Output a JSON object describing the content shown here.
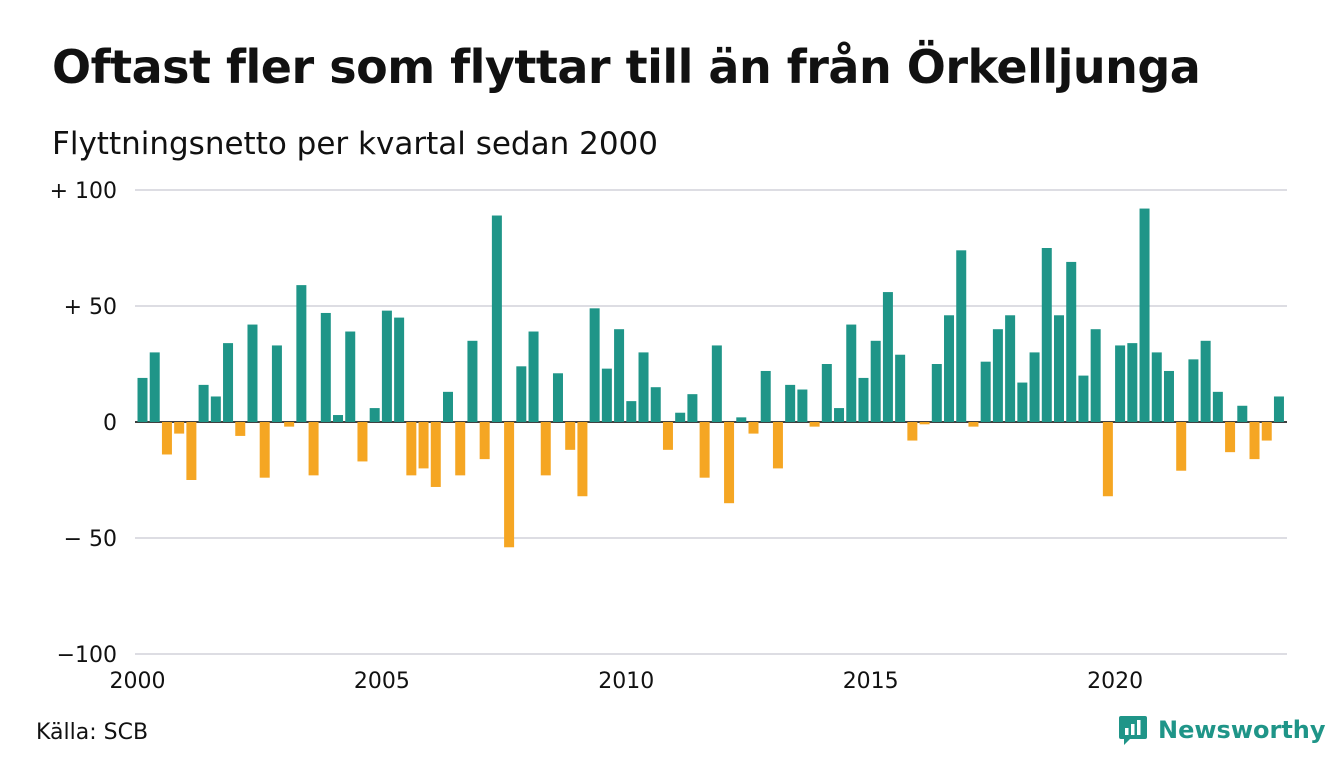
{
  "title": "Oftast fler som flyttar till än från Örkelljunga",
  "subtitle": "Flyttningsnetto per kvartal sedan 2000",
  "source": "Källa: SCB",
  "brand": {
    "name": "Newsworthy",
    "icon": "newsworthy-logo-icon"
  },
  "colors": {
    "positive": "#1f9588",
    "negative": "#f5a623",
    "grid": "#dddde3",
    "zero": "#000000"
  },
  "chart_data": {
    "type": "bar",
    "x_start": "2000 Q1",
    "values": [
      19,
      30,
      -14,
      -5,
      -25,
      16,
      11,
      34,
      -6,
      42,
      -24,
      33,
      -2,
      59,
      -23,
      47,
      3,
      39,
      -17,
      6,
      48,
      45,
      -23,
      -20,
      -28,
      13,
      -23,
      35,
      -16,
      89,
      -54,
      24,
      39,
      -23,
      21,
      -12,
      -32,
      49,
      23,
      40,
      9,
      30,
      15,
      -12,
      4,
      12,
      -24,
      33,
      -35,
      2,
      -5,
      22,
      -20,
      16,
      14,
      -2,
      25,
      6,
      42,
      19,
      35,
      56,
      29,
      -8,
      -1,
      25,
      46,
      74,
      -2,
      26,
      40,
      46,
      17,
      30,
      75,
      46,
      69,
      20,
      40,
      -32,
      33,
      34,
      92,
      30,
      22,
      -21,
      27,
      35,
      13,
      -13,
      7,
      -16,
      -8,
      11
    ],
    "x_ticks": [
      "2000",
      "2005",
      "2010",
      "2015",
      "2020"
    ],
    "y_ticks": [
      "+ 100",
      "+  50",
      "0",
      "− 50",
      "−100"
    ],
    "y_tick_values": [
      100,
      50,
      0,
      -50,
      -100
    ],
    "ylim": [
      -100,
      100
    ]
  }
}
